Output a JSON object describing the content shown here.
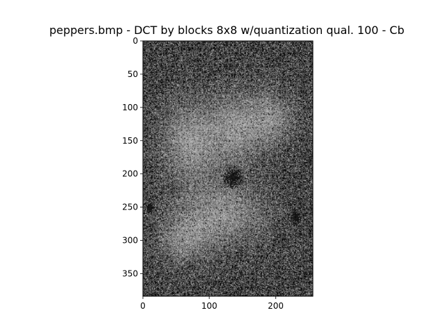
{
  "chart_data": {
    "type": "heatmap",
    "title": "peppers.bmp - DCT by blocks 8x8  w/quantization qual. 100 - Cb",
    "xlabel": "",
    "ylabel": "",
    "colormap": "gray",
    "image_width": 256,
    "image_height": 384,
    "block_size": 8,
    "xlim": [
      0,
      256
    ],
    "ylim": [
      384,
      0
    ],
    "x_ticks": [
      0,
      100,
      200
    ],
    "y_ticks": [
      0,
      50,
      100,
      150,
      200,
      250,
      300,
      350
    ],
    "grid": false,
    "legend": "none"
  }
}
